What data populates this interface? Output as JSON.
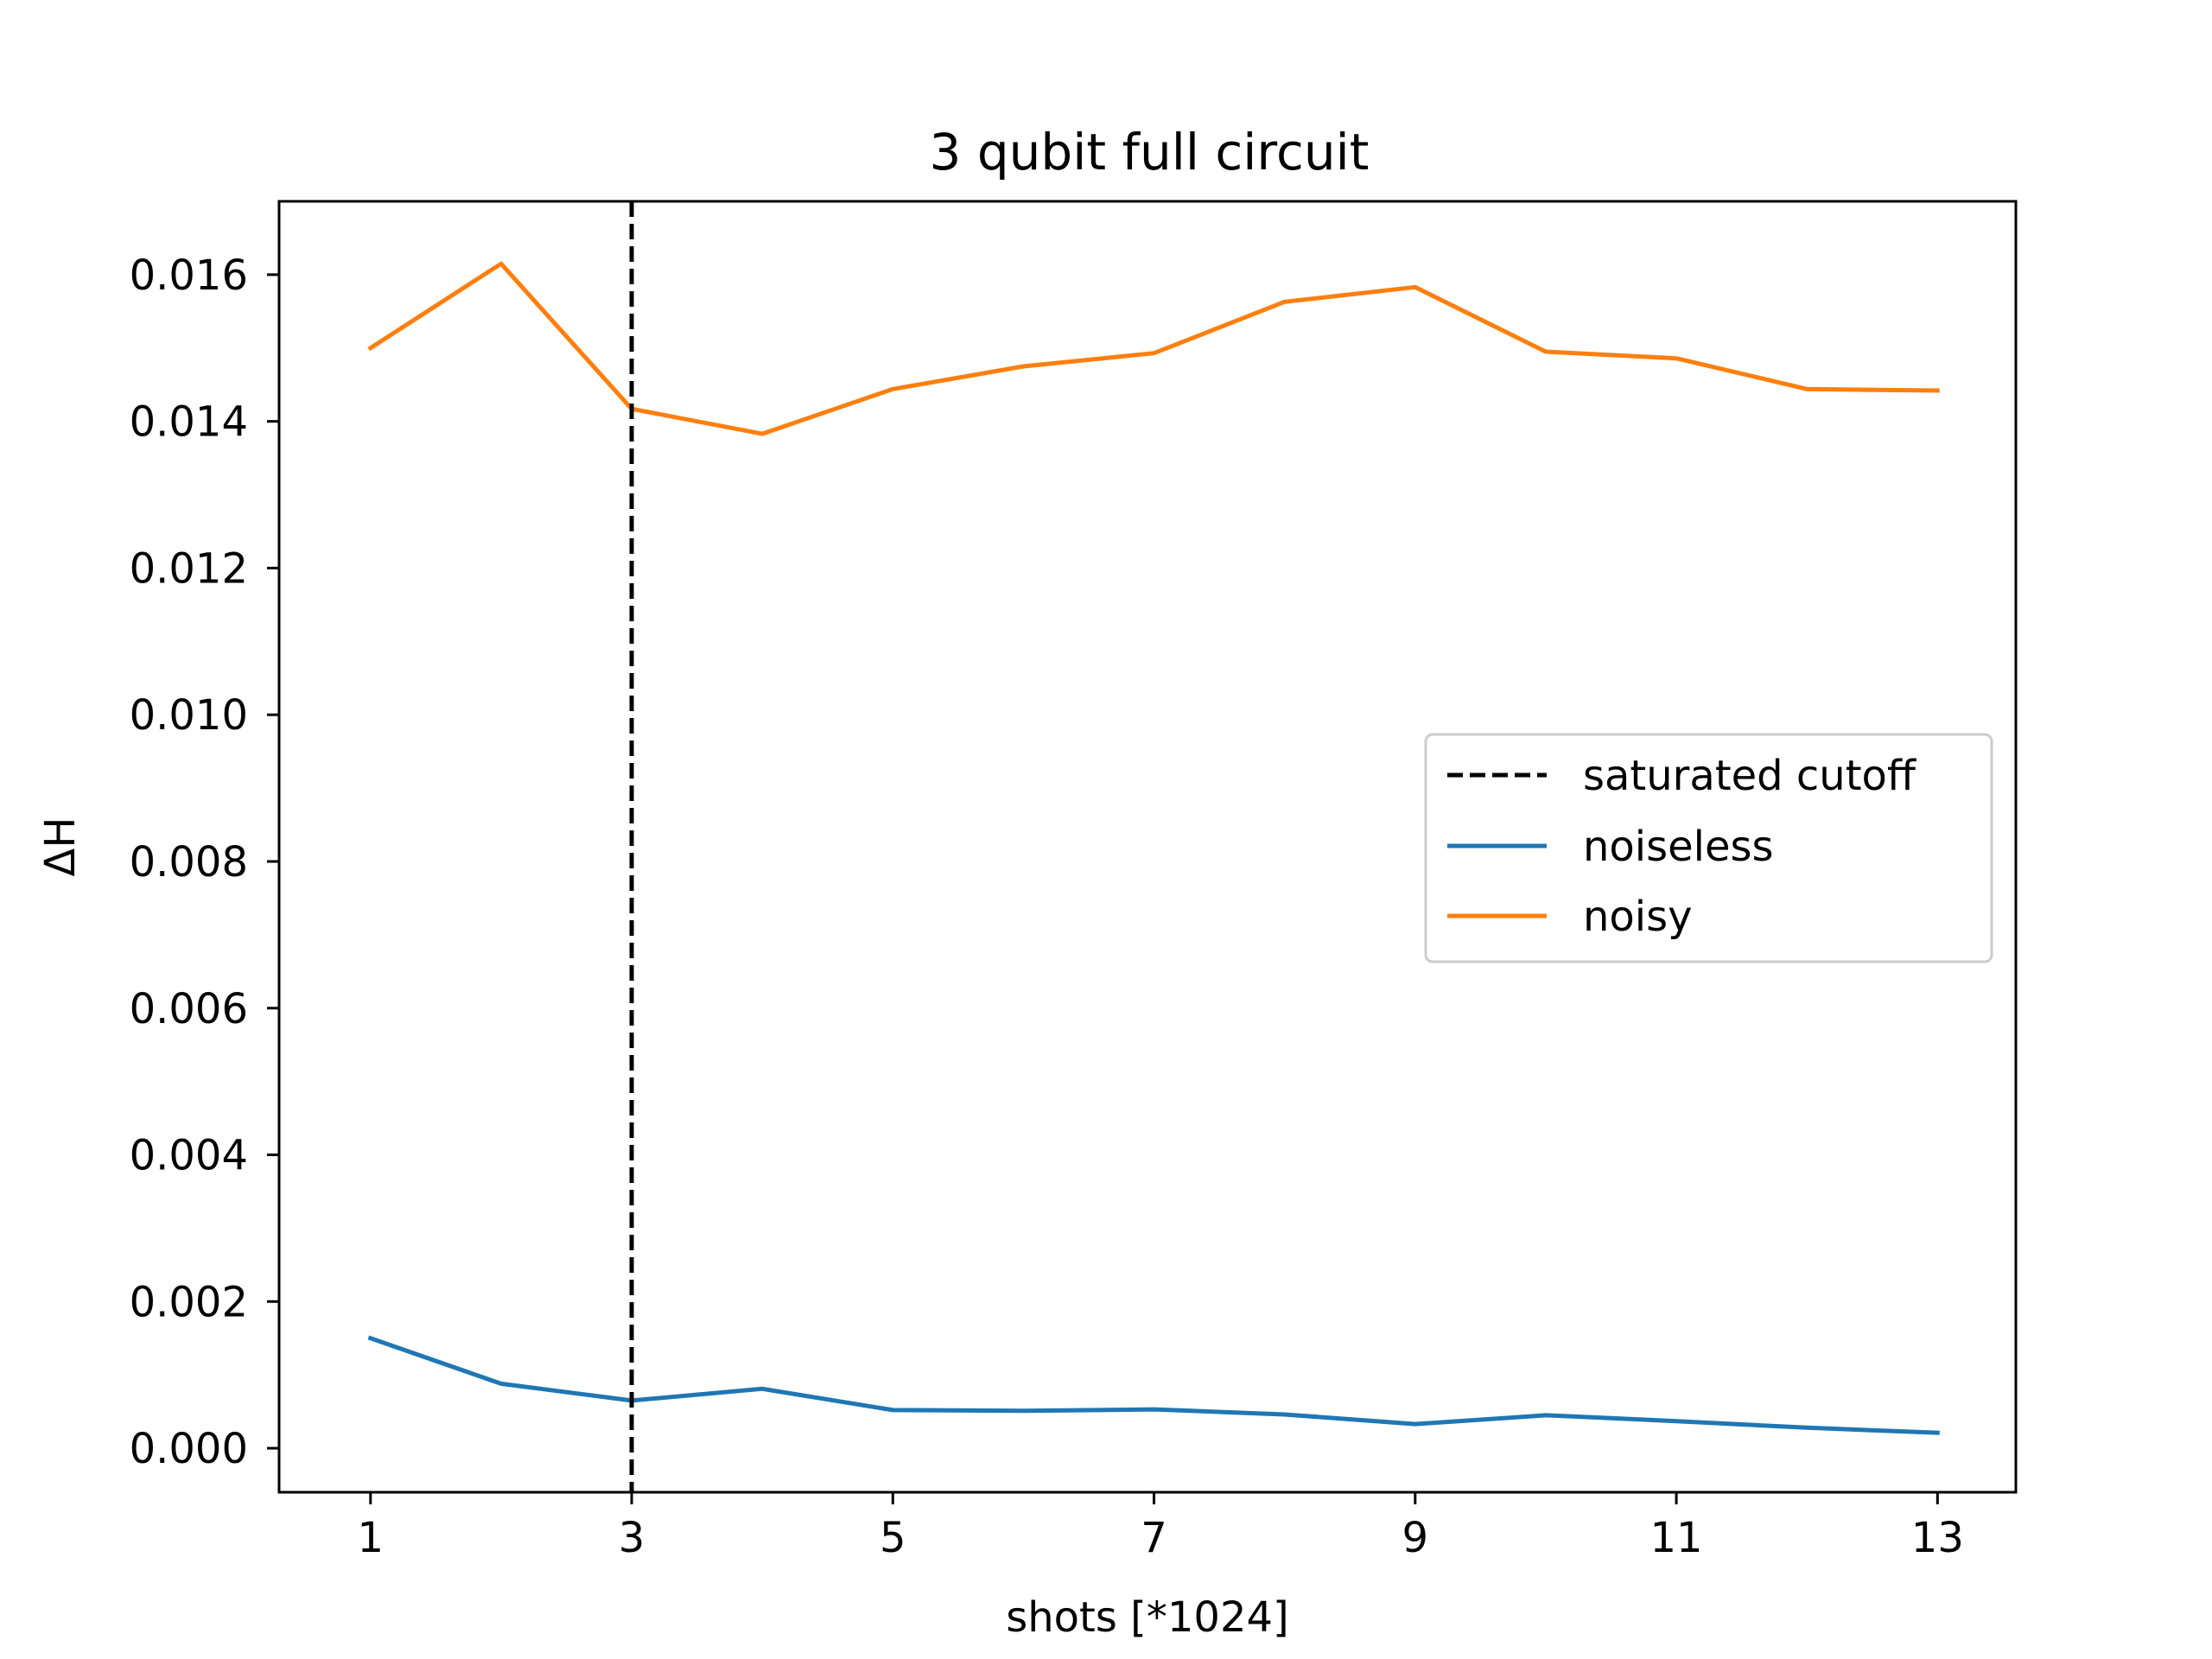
{
  "chart_data": {
    "type": "line",
    "title": "3 qubit full circuit",
    "xlabel": "shots [*1024]",
    "ylabel": "ΔH",
    "xlim": [
      0.3,
      13.6
    ],
    "ylim": [
      -0.0006,
      0.017
    ],
    "xticks": [
      1,
      3,
      5,
      7,
      9,
      11,
      13
    ],
    "xtick_labels": [
      "1",
      "3",
      "5",
      "7",
      "9",
      "11",
      "13"
    ],
    "yticks": [
      0.0,
      0.002,
      0.004,
      0.006,
      0.008,
      0.01,
      0.012,
      0.014,
      0.016
    ],
    "ytick_labels": [
      "0.000",
      "0.002",
      "0.004",
      "0.006",
      "0.008",
      "0.010",
      "0.012",
      "0.014",
      "0.016"
    ],
    "grid": false,
    "legend_position": "center-right",
    "x": [
      1,
      2,
      3,
      4,
      5,
      6,
      7,
      8,
      9,
      10,
      11,
      12,
      13
    ],
    "vline": {
      "name": "saturated cutoff",
      "x": 3,
      "color": "#000000",
      "style": "dashed"
    },
    "series": [
      {
        "name": "noiseless",
        "color": "#1f77b4",
        "values": [
          0.0015,
          0.00088,
          0.00065,
          0.00081,
          0.00052,
          0.00051,
          0.00053,
          0.00046,
          0.00033,
          0.00045,
          0.00037,
          0.00028,
          0.00021
        ]
      },
      {
        "name": "noisy",
        "color": "#ff7f0e",
        "values": [
          0.015,
          0.01615,
          0.01417,
          0.01383,
          0.01444,
          0.01475,
          0.01493,
          0.01563,
          0.01583,
          0.01495,
          0.01486,
          0.01444,
          0.01442
        ]
      }
    ]
  }
}
